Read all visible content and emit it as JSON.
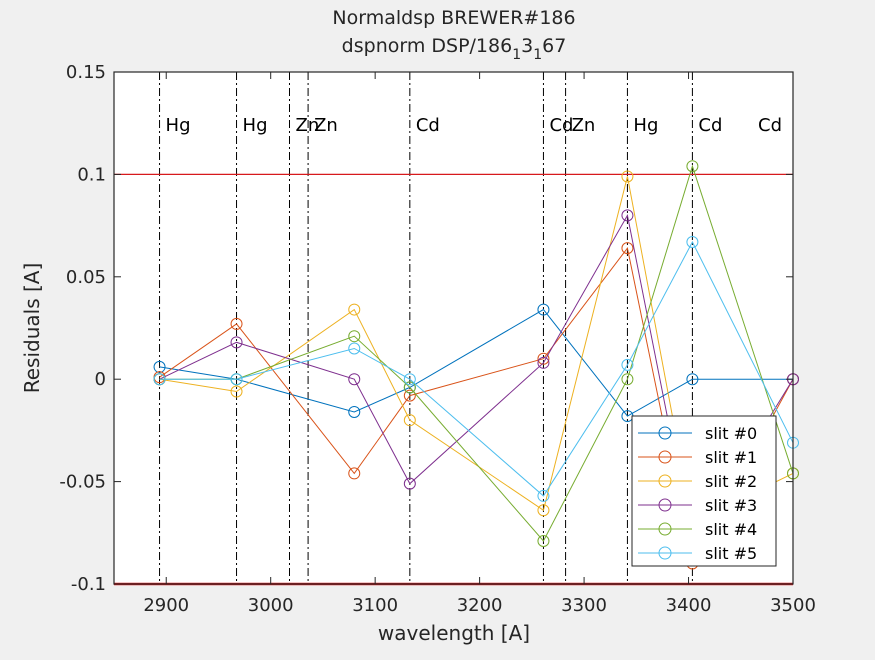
{
  "chart_data": {
    "type": "line",
    "title": {
      "line1": "Normaldsp BREWER#186",
      "line2_main": "dspnorm DSP/186",
      "line2_sub1": "1",
      "line2_mid": "3",
      "line2_sub2": "1",
      "line2_end": "67"
    },
    "xlabel": "wavelength [A]",
    "ylabel": "Residuals [A]",
    "xlim": [
      2850,
      3500
    ],
    "ylim": [
      -0.1,
      0.15
    ],
    "xticks": [
      2900,
      3000,
      3100,
      3200,
      3300,
      3400,
      3500
    ],
    "xtick_labels": [
      "2900",
      "3000",
      "3100",
      "3200",
      "3300",
      "3400",
      "3500"
    ],
    "yticks": [
      -0.1,
      -0.05,
      0,
      0.05,
      0.1,
      0.15
    ],
    "ytick_labels": [
      "-0.1",
      "-0.05",
      "0",
      "0.05",
      "0.1",
      "0.15"
    ],
    "grid": false,
    "legend_position": "bottom-right",
    "threshold_lines": [
      {
        "y": 0.1,
        "color": "#d7191c"
      },
      {
        "y": -0.1,
        "color": "#d7191c"
      }
    ],
    "lamp_lines": [
      {
        "x": 2893.6,
        "label": "Hg"
      },
      {
        "x": 2967.3,
        "label": "Hg"
      },
      {
        "x": 3018.0,
        "label": "Zn"
      },
      {
        "x": 3035.8,
        "label": "Zn"
      },
      {
        "x": 3133.2,
        "label": "Cd"
      },
      {
        "x": 3261.1,
        "label": "Cd"
      },
      {
        "x": 3282.3,
        "label": "Zn"
      },
      {
        "x": 3341.5,
        "label": "Hg"
      },
      {
        "x": 3403.7,
        "label": "Cd"
      },
      {
        "x": 3500.0,
        "label": "Cd"
      }
    ],
    "x": [
      2893.6,
      2967.3,
      3080.0,
      3133.2,
      3261.1,
      3341.5,
      3403.7,
      3500.0
    ],
    "series": [
      {
        "name": "slit #0",
        "color": "#0072bd",
        "values": [
          0.006,
          0.0,
          -0.016,
          -0.004,
          0.034,
          -0.018,
          0.0,
          0.0
        ]
      },
      {
        "name": "slit #1",
        "color": "#d95319",
        "values": [
          0.001,
          0.027,
          -0.046,
          -0.008,
          0.01,
          0.064,
          -0.09,
          0.0
        ]
      },
      {
        "name": "slit #2",
        "color": "#edb120",
        "values": [
          0.0,
          -0.006,
          0.034,
          -0.02,
          -0.064,
          0.099,
          -0.07,
          -0.046
        ]
      },
      {
        "name": "slit #3",
        "color": "#7e2f8e",
        "values": [
          0.0,
          0.018,
          0.0,
          -0.051,
          0.008,
          0.08,
          -0.08,
          0.0
        ]
      },
      {
        "name": "slit #4",
        "color": "#77ac30",
        "values": [
          0.0,
          0.0,
          0.021,
          -0.004,
          -0.079,
          0.0,
          0.104,
          -0.046
        ]
      },
      {
        "name": "slit #5",
        "color": "#4dbeee",
        "values": [
          0.0,
          0.0,
          0.015,
          0.0,
          -0.057,
          0.007,
          0.067,
          -0.031
        ]
      }
    ]
  }
}
